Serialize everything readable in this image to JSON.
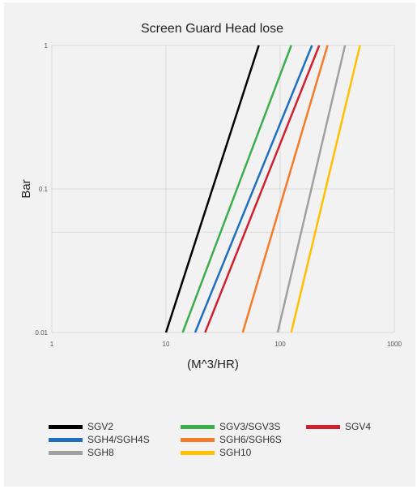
{
  "chart_data": {
    "type": "line",
    "title": "Screen Guard Head lose",
    "xlabel": "(M^3/HR)",
    "ylabel": "Bar",
    "xscale": "log",
    "yscale": "log",
    "xlim": [
      1,
      1000
    ],
    "ylim": [
      0.01,
      1
    ],
    "x_ticks": [
      "1",
      "10",
      "100",
      "1000"
    ],
    "y_ticks": [
      "0.01",
      "0.1",
      "1"
    ],
    "grid": true,
    "legend_position": "bottom",
    "series": [
      {
        "name": "SGV2",
        "color": "#000000",
        "x": [
          10,
          65
        ],
        "y": [
          0.01,
          1
        ]
      },
      {
        "name": "SGV3/SGV3S",
        "color": "#3cad4b",
        "x": [
          14,
          125
        ],
        "y": [
          0.01,
          1
        ]
      },
      {
        "name": "SGV4",
        "color": "#d0202e",
        "x": [
          22,
          220
        ],
        "y": [
          0.01,
          1
        ]
      },
      {
        "name": "SGH4/SGH4S",
        "color": "#1f6ec0",
        "x": [
          18,
          190
        ],
        "y": [
          0.01,
          1
        ]
      },
      {
        "name": "SGH6/SGH6S",
        "color": "#f47b2a",
        "x": [
          47,
          260
        ],
        "y": [
          0.01,
          1
        ]
      },
      {
        "name": "SGH8",
        "color": "#a0a0a0",
        "x": [
          95,
          370
        ],
        "y": [
          0.01,
          1
        ]
      },
      {
        "name": "SGH10",
        "color": "#ffc000",
        "x": [
          125,
          500
        ],
        "y": [
          0.01,
          1
        ]
      }
    ]
  }
}
